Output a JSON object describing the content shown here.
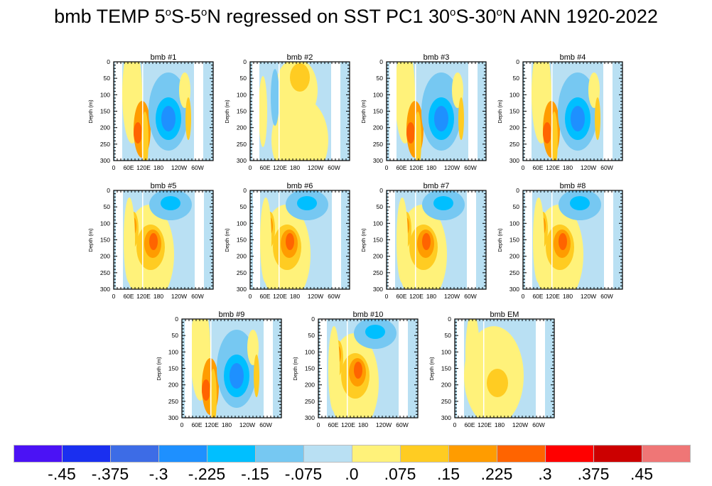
{
  "title_parts": [
    "bmb TEMP 5",
    "o",
    "S-5",
    "o",
    "N regressed on SST PC1 30",
    "o",
    "S-30",
    "o",
    "N ANN 1920-2022"
  ],
  "ylabel": "Depth (m)",
  "yticks": [
    "0",
    "50",
    "100",
    "150",
    "200",
    "250",
    "300"
  ],
  "xticks": [
    "0",
    "60E",
    "120E",
    "180",
    "120W",
    "60W"
  ],
  "panels": [
    {
      "title": "bmb #1",
      "style": "a"
    },
    {
      "title": "bmb #2",
      "style": "c"
    },
    {
      "title": "bmb #3",
      "style": "a"
    },
    {
      "title": "bmb #4",
      "style": "a"
    },
    {
      "title": "bmb #5",
      "style": "b"
    },
    {
      "title": "bmb #6",
      "style": "b"
    },
    {
      "title": "bmb #7",
      "style": "b"
    },
    {
      "title": "bmb #8",
      "style": "b"
    },
    {
      "title": "bmb #9",
      "style": "a"
    },
    {
      "title": "bmb #10",
      "style": "b"
    },
    {
      "title": "bmb EM",
      "style": "em"
    }
  ],
  "colorbar": {
    "colors": [
      "#4b12f5",
      "#1a2ff0",
      "#3d6ce6",
      "#1e90ff",
      "#00bfff",
      "#76c8f2",
      "#b9e0f3",
      "#fff27a",
      "#ffcc22",
      "#ff9c00",
      "#ff6400",
      "#ff0000",
      "#cc0000",
      "#ef7676"
    ],
    "labels": [
      "-.45",
      "-.375",
      "-.3",
      "-.225",
      "-.15",
      "-.075",
      ".0",
      ".075",
      ".15",
      ".225",
      ".3",
      ".375",
      ".45"
    ]
  }
}
